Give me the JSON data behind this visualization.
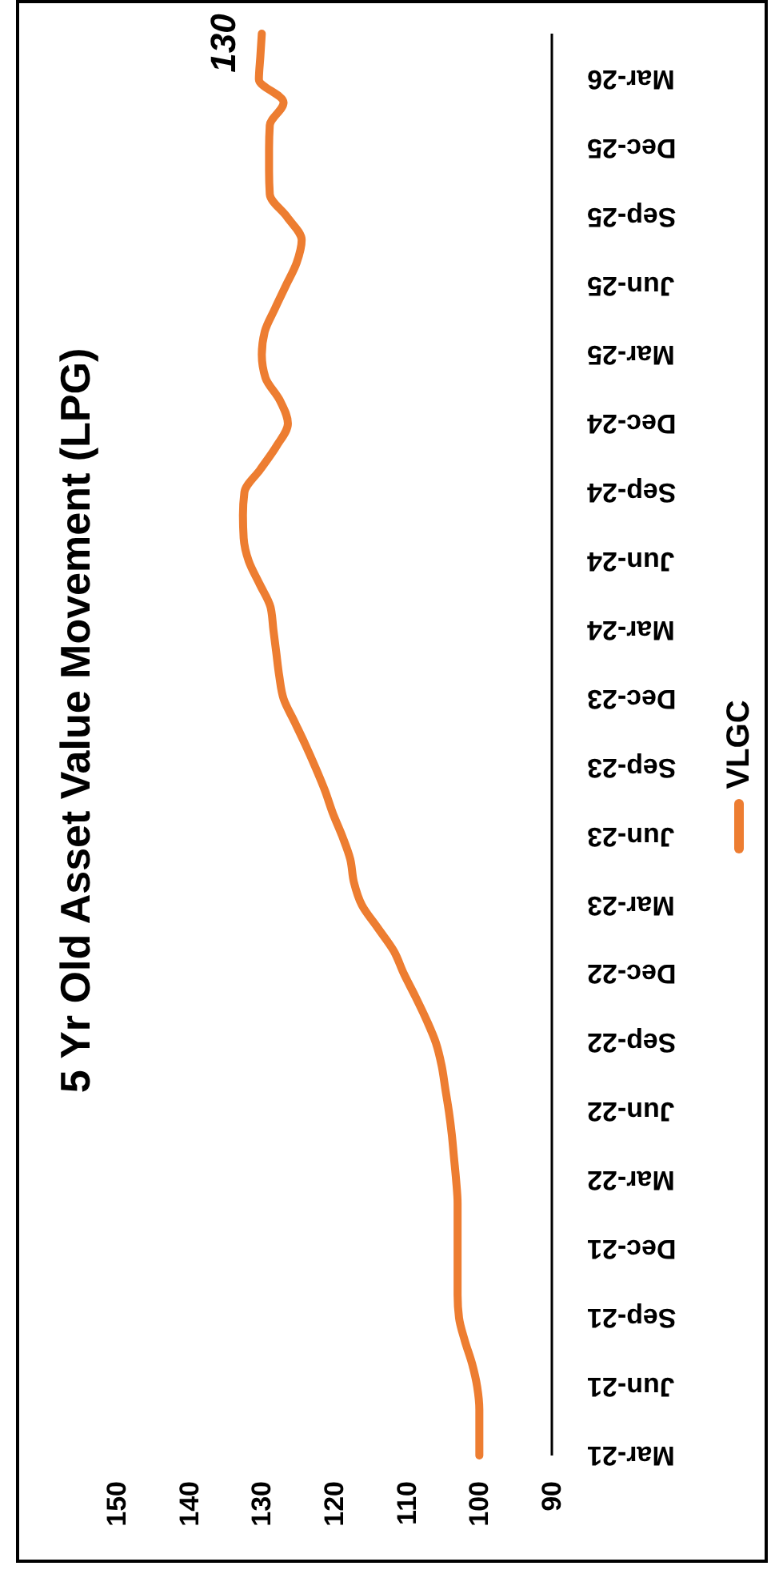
{
  "chart_data": {
    "type": "line",
    "title": "5 Yr Old Asset Value Movement (LPG)",
    "orientation": "horizontal",
    "categories": [
      null,
      null,
      "Mar-26",
      null,
      null,
      "Dec-25",
      null,
      null,
      "Sep-25",
      null,
      null,
      "Jun-25",
      null,
      null,
      "Mar-25",
      null,
      null,
      "Dec-24",
      null,
      null,
      "Sep-24",
      null,
      null,
      "Jun-24",
      null,
      null,
      "Mar-24",
      null,
      null,
      "Dec-23",
      null,
      null,
      "Sep-23",
      null,
      null,
      "Jun-23",
      null,
      null,
      "Mar-23",
      null,
      null,
      "Dec-22",
      null,
      null,
      "Sep-22",
      null,
      null,
      "Jun-22",
      null,
      null,
      "Mar-22",
      null,
      null,
      "Dec-21",
      null,
      null,
      "Sep-21",
      null,
      null,
      "Jun-21",
      null,
      null,
      "Mar-21"
    ],
    "series": [
      {
        "name": "VLGC",
        "color": "#ed7d31",
        "values": [
          130,
          130.2,
          130.4,
          127,
          128.9,
          129,
          129,
          128.9,
          126.5,
          124.5,
          125.2,
          126.7,
          128.2,
          129.6,
          130,
          129.5,
          127.5,
          126.4,
          128,
          130.2,
          132.4,
          132.6,
          132.5,
          131.8,
          130.3,
          128.8,
          128.4,
          128,
          127.6,
          127,
          125.5,
          124,
          122.6,
          121.3,
          120.2,
          118.9,
          117.8,
          117.3,
          116.2,
          114,
          111.8,
          110.4,
          108.8,
          107.3,
          106,
          105.2,
          104.7,
          104.2,
          103.8,
          103.5,
          103.2,
          103,
          103,
          103,
          103,
          103,
          102.8,
          102,
          101,
          100.3,
          100,
          100,
          100
        ],
        "value_labels": [
          "130",
          null,
          null,
          null,
          null,
          null,
          null,
          null,
          null,
          null,
          null,
          null,
          null,
          null,
          null,
          null,
          null,
          null,
          null,
          null,
          null,
          null,
          null,
          null,
          null,
          null,
          null,
          null,
          null,
          null,
          null,
          null,
          null,
          null,
          null,
          null,
          null,
          null,
          null,
          null,
          null,
          null,
          null,
          null,
          null,
          null,
          null,
          null,
          null,
          null,
          null,
          null,
          null,
          null,
          null,
          null,
          null,
          null,
          null,
          null,
          null,
          null,
          null
        ]
      }
    ],
    "xlim": [
      150,
      90
    ],
    "xticks": [
      150,
      140,
      130,
      120,
      110,
      100,
      90
    ],
    "grid": false,
    "legend": "right",
    "marker": "none",
    "line_style": "solid"
  }
}
